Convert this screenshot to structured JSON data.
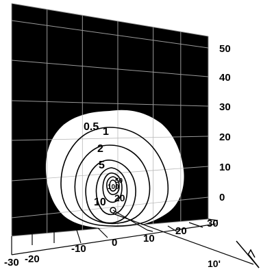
{
  "chart_data": {
    "type": "contour",
    "vertical_axis": {
      "ticks": [
        "0",
        "10",
        "20",
        "30",
        "40",
        "50"
      ],
      "range": [
        -10,
        60
      ]
    },
    "horizontal_axis": {
      "ticks": [
        "-30",
        "-20",
        "-10",
        "0",
        "10",
        "20",
        "30"
      ],
      "range": [
        -30,
        30
      ]
    },
    "depth_axis_label": "10'",
    "contour_levels": [
      "0.5",
      "1",
      "2",
      "5",
      "10",
      "20",
      "50",
      "100"
    ],
    "grid": true,
    "background_color": "#000000",
    "contour_fill_color": "#ffffff",
    "line_color": "#000000"
  }
}
